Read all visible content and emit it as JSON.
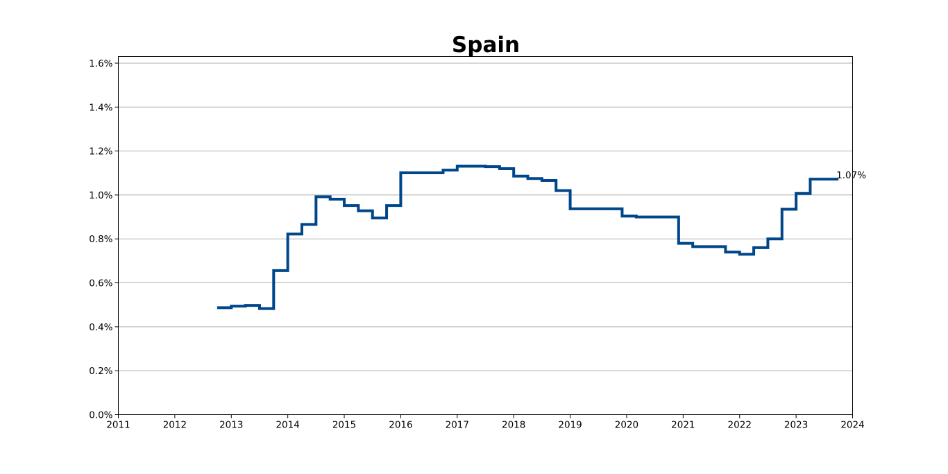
{
  "chart_data": {
    "type": "line",
    "style": "step",
    "title": "Spain",
    "xlabel": "",
    "ylabel": "",
    "xlim": [
      2011,
      2024
    ],
    "ylim": [
      0,
      0.0163
    ],
    "x_ticks": [
      "2011",
      "2012",
      "2013",
      "2014",
      "2015",
      "2016",
      "2017",
      "2018",
      "2019",
      "2020",
      "2021",
      "2022",
      "2023",
      "2024"
    ],
    "y_ticks": [
      "0.0%",
      "0.2%",
      "0.4%",
      "0.6%",
      "0.8%",
      "1.0%",
      "1.2%",
      "1.4%",
      "1.6%"
    ],
    "grid": "horizontal",
    "color": "#00468B",
    "end_label": "1.07%",
    "series": [
      {
        "x": [
          2012.75,
          2013.0,
          2013.25,
          2013.5,
          2013.75,
          2014.0,
          2014.25,
          2014.5,
          2014.75,
          2015.0,
          2015.25,
          2015.5,
          2015.75,
          2016.0,
          2016.25,
          2016.5,
          2016.75,
          2017.0,
          2017.25,
          2017.5,
          2017.75,
          2018.0,
          2018.25,
          2018.5,
          2018.75,
          2019.0,
          2019.25,
          2019.5,
          2019.75,
          2019.92,
          2020.17,
          2020.42,
          2020.67,
          2020.92,
          2021.17,
          2021.42,
          2021.75,
          2022.0,
          2022.25,
          2022.5,
          2022.75,
          2023.0,
          2023.25,
          2023.5
        ],
        "y": [
          0.00487,
          0.00494,
          0.00497,
          0.00483,
          0.00656,
          0.00822,
          0.00866,
          0.00992,
          0.00981,
          0.00952,
          0.00928,
          0.00895,
          0.00952,
          0.01101,
          0.01101,
          0.01101,
          0.01113,
          0.01131,
          0.01131,
          0.01129,
          0.0112,
          0.01086,
          0.01075,
          0.01066,
          0.0102,
          0.00937,
          0.00937,
          0.00937,
          0.00937,
          0.00904,
          0.009,
          0.009,
          0.009,
          0.0078,
          0.00765,
          0.00765,
          0.0074,
          0.0073,
          0.0076,
          0.008,
          0.00935,
          0.01007,
          0.01072,
          0.01072
        ]
      }
    ]
  }
}
